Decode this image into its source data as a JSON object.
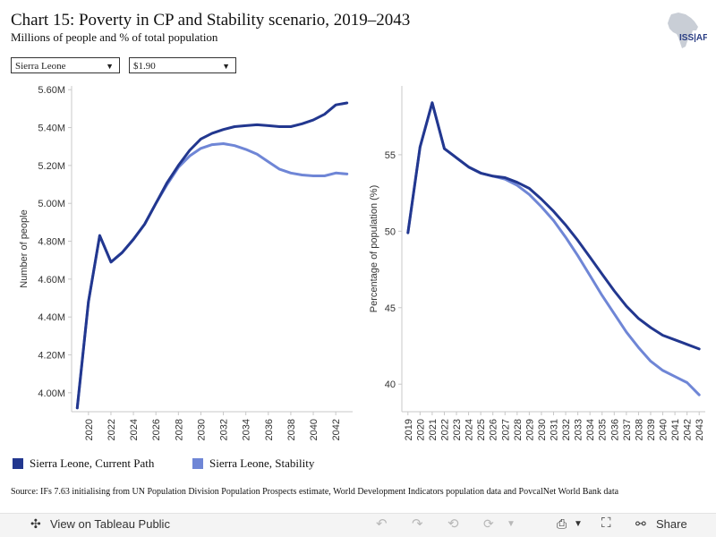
{
  "header": {
    "title": "Chart 15: Poverty in CP and Stability scenario, 2019–2043",
    "subtitle": "Millions of people and % of total population",
    "logo_text": "ISS|AFI"
  },
  "filters": {
    "country": "Sierra Leone",
    "poverty_line": "$1.90"
  },
  "chart_data": [
    {
      "type": "line",
      "ylabel": "Number of people",
      "xlabel": "",
      "ylim": [
        3.9,
        5.62
      ],
      "yticks": [
        4.0,
        4.2,
        4.4,
        4.6,
        4.8,
        5.0,
        5.2,
        5.4,
        5.6
      ],
      "ytick_labels": [
        "4.00M",
        "4.20M",
        "4.40M",
        "4.60M",
        "4.80M",
        "5.00M",
        "5.20M",
        "5.40M",
        "5.60M"
      ],
      "xlim": [
        2018.5,
        2043.5
      ],
      "xticks": [
        2020,
        2022,
        2024,
        2026,
        2028,
        2030,
        2032,
        2034,
        2036,
        2038,
        2040,
        2042
      ],
      "x": [
        2019,
        2020,
        2021,
        2022,
        2023,
        2024,
        2025,
        2026,
        2027,
        2028,
        2029,
        2030,
        2031,
        2032,
        2033,
        2034,
        2035,
        2036,
        2037,
        2038,
        2039,
        2040,
        2041,
        2042,
        2043
      ],
      "series": [
        {
          "name": "Sierra Leone, Current Path",
          "color": "#22378f",
          "values": [
            3.92,
            4.48,
            4.83,
            4.69,
            4.74,
            4.81,
            4.89,
            5.0,
            5.11,
            5.2,
            5.28,
            5.34,
            5.37,
            5.39,
            5.405,
            5.41,
            5.415,
            5.41,
            5.405,
            5.405,
            5.42,
            5.44,
            5.47,
            5.52,
            5.53
          ]
        },
        {
          "name": "Sierra Leone, Stability",
          "color": "#6f86d6",
          "values": [
            3.92,
            4.48,
            4.83,
            4.69,
            4.74,
            4.81,
            4.89,
            5.0,
            5.1,
            5.19,
            5.25,
            5.29,
            5.31,
            5.315,
            5.305,
            5.285,
            5.26,
            5.22,
            5.18,
            5.16,
            5.15,
            5.145,
            5.145,
            5.16,
            5.155
          ]
        }
      ]
    },
    {
      "type": "line",
      "ylabel": "Percentage of population (%)",
      "xlabel": "",
      "ylim": [
        38.2,
        59.5
      ],
      "yticks": [
        40,
        45,
        50,
        55
      ],
      "ytick_labels": [
        "40",
        "45",
        "50",
        "55"
      ],
      "xlim": [
        2018.5,
        2043.5
      ],
      "xticks": [
        2019,
        2020,
        2021,
        2022,
        2023,
        2024,
        2025,
        2026,
        2027,
        2028,
        2029,
        2030,
        2031,
        2032,
        2033,
        2034,
        2035,
        2036,
        2037,
        2038,
        2039,
        2040,
        2041,
        2042,
        2043
      ],
      "x": [
        2019,
        2020,
        2021,
        2022,
        2023,
        2024,
        2025,
        2026,
        2027,
        2028,
        2029,
        2030,
        2031,
        2032,
        2033,
        2034,
        2035,
        2036,
        2037,
        2038,
        2039,
        2040,
        2041,
        2042,
        2043
      ],
      "series": [
        {
          "name": "Sierra Leone, Current Path",
          "color": "#22378f",
          "values": [
            49.9,
            55.5,
            58.4,
            55.4,
            54.8,
            54.2,
            53.8,
            53.6,
            53.5,
            53.2,
            52.8,
            52.1,
            51.3,
            50.4,
            49.4,
            48.3,
            47.2,
            46.1,
            45.1,
            44.3,
            43.7,
            43.2,
            42.9,
            42.6,
            42.3
          ]
        },
        {
          "name": "Sierra Leone, Stability",
          "color": "#6f86d6",
          "values": [
            49.9,
            55.5,
            58.4,
            55.4,
            54.8,
            54.2,
            53.8,
            53.6,
            53.4,
            53.0,
            52.4,
            51.6,
            50.7,
            49.6,
            48.4,
            47.1,
            45.8,
            44.6,
            43.4,
            42.4,
            41.5,
            40.9,
            40.5,
            40.1,
            39.3
          ]
        }
      ]
    }
  ],
  "legend": [
    {
      "label": "Sierra Leone, Current Path",
      "color": "#22378f"
    },
    {
      "label": "Sierra Leone, Stability",
      "color": "#6f86d6"
    }
  ],
  "source": "Source: IFs 7.63 initialising from UN Population Division Population Prospects estimate, World Development Indicators population data and PovcalNet World Bank data",
  "toolbar": {
    "view_label": "View on Tableau Public",
    "share_label": "Share"
  }
}
